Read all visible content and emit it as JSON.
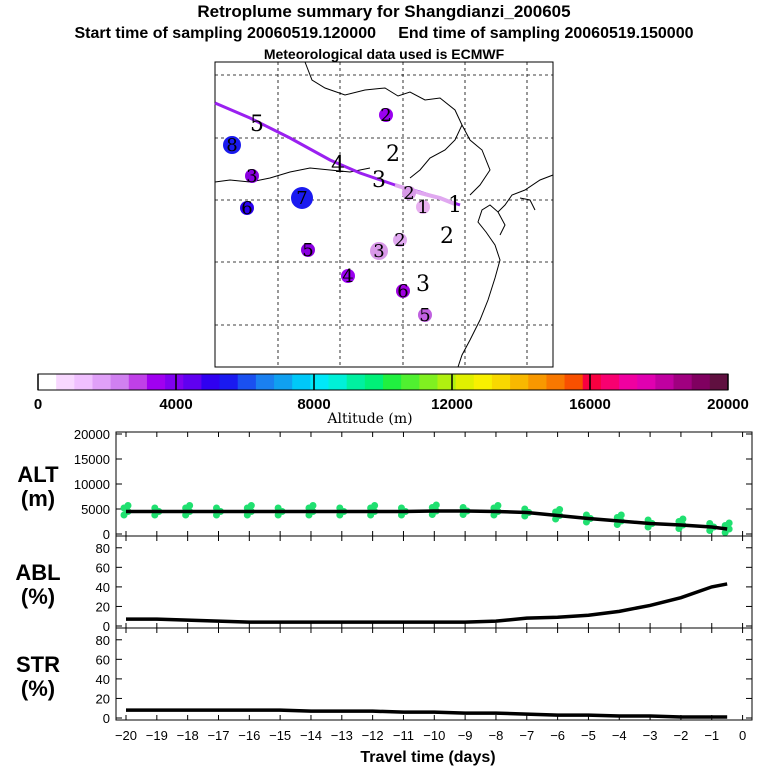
{
  "header": {
    "title": "Retroplume summary for Shangdianzi_200605",
    "start_label": "Start time of sampling 20060519.120000",
    "end_label": "End time of sampling 20060519.150000",
    "met_label": "Meteorological data used is ECMWF"
  },
  "map": {
    "trajectory_color": "#a020f0",
    "cluster_markers": [
      {
        "label": "5",
        "color": "none",
        "size": 0
      },
      {
        "label": "8",
        "color": "#1a1aee",
        "size": 2
      },
      {
        "label": "3",
        "color": "#8a00e0",
        "size": 1
      },
      {
        "label": "6",
        "color": "#2a00f0",
        "size": 1
      },
      {
        "label": "7",
        "color": "#1a1af0",
        "size": 3
      },
      {
        "label": "4",
        "color": "none",
        "size": 0
      },
      {
        "label": "3",
        "color": "none",
        "size": 0
      },
      {
        "label": "2",
        "color": "#9a00f0",
        "size": 1
      },
      {
        "label": "2",
        "color": "none",
        "size": 0
      },
      {
        "label": "2",
        "color": "#d89ae8",
        "size": 1
      },
      {
        "label": "1",
        "color": "#e8b0f0",
        "size": 1
      },
      {
        "label": "1",
        "color": "none",
        "size": 0
      },
      {
        "label": "2",
        "color": "#e0a8f0",
        "size": 1
      },
      {
        "label": "3",
        "color": "#d898e8",
        "size": 2
      },
      {
        "label": "2",
        "color": "none",
        "size": 0
      },
      {
        "label": "5",
        "color": "#8a00e0",
        "size": 1
      },
      {
        "label": "4",
        "color": "#9a00f0",
        "size": 1
      },
      {
        "label": "6",
        "color": "#a000e0",
        "size": 1
      },
      {
        "label": "3",
        "color": "none",
        "size": 0
      },
      {
        "label": "5",
        "color": "#c060e0",
        "size": 1
      }
    ]
  },
  "colorbar": {
    "tick_labels": [
      "0",
      "4000",
      "8000",
      "12000",
      "16000",
      "20000"
    ],
    "label": "Altitude (m)",
    "colors": [
      "#ffffff",
      "#f8d8ff",
      "#f0c0ff",
      "#e0a0f8",
      "#d080f0",
      "#c040e8",
      "#a000f0",
      "#8000f0",
      "#6000f0",
      "#3000f0",
      "#1a1af0",
      "#1a50f0",
      "#1a80f0",
      "#10a0f0",
      "#00c8f8",
      "#00e8f8",
      "#00f0d8",
      "#00f0a0",
      "#00f078",
      "#20f040",
      "#50f030",
      "#80f020",
      "#b0f010",
      "#e0f000",
      "#f8f000",
      "#f8d800",
      "#f8b800",
      "#f89800",
      "#f87800",
      "#f85000",
      "#f80040",
      "#f80070",
      "#f000a0",
      "#e000b0",
      "#c000a0",
      "#a00080",
      "#800060",
      "#601040"
    ]
  },
  "chart_data": [
    {
      "type": "line",
      "panel": "ALT",
      "ylabel": "ALT\n(m)",
      "ylabel_line1": "ALT",
      "ylabel_line2": "(m)",
      "x": [
        -20,
        -19,
        -18,
        -17,
        -16,
        -15,
        -14,
        -13,
        -12,
        -11,
        -10,
        -9,
        -8,
        -7,
        -6,
        -5,
        -4,
        -3,
        -2,
        -1,
        -0.5
      ],
      "values": [
        4500,
        4500,
        4500,
        4500,
        4500,
        4500,
        4500,
        4500,
        4500,
        4500,
        4600,
        4600,
        4500,
        4300,
        3700,
        3100,
        2600,
        2100,
        1800,
        1400,
        1000
      ],
      "scatter_color": "#20e070",
      "ylim": [
        0,
        20000
      ],
      "yticks": [
        0,
        5000,
        10000,
        15000,
        20000
      ]
    },
    {
      "type": "line",
      "panel": "ABL",
      "ylabel_line1": "ABL",
      "ylabel_line2": "(%)",
      "x": [
        -20,
        -19,
        -18,
        -17,
        -16,
        -15,
        -14,
        -13,
        -12,
        -11,
        -10,
        -9,
        -8,
        -7,
        -6,
        -5,
        -4,
        -3,
        -2,
        -1,
        -0.5
      ],
      "values": [
        7,
        7,
        6,
        5,
        4,
        4,
        4,
        4,
        4,
        4,
        4,
        4,
        5,
        8,
        9,
        11,
        15,
        21,
        29,
        40,
        43
      ],
      "ylim": [
        0,
        90
      ],
      "yticks": [
        0,
        20,
        40,
        60,
        80
      ]
    },
    {
      "type": "line",
      "panel": "STR",
      "ylabel_line1": "STR",
      "ylabel_line2": "(%)",
      "x": [
        -20,
        -19,
        -18,
        -17,
        -16,
        -15,
        -14,
        -13,
        -12,
        -11,
        -10,
        -9,
        -8,
        -7,
        -6,
        -5,
        -4,
        -3,
        -2,
        -1,
        -0.5
      ],
      "values": [
        8,
        8,
        8,
        8,
        8,
        8,
        7,
        7,
        7,
        6,
        6,
        5,
        5,
        4,
        3,
        3,
        2,
        2,
        1,
        1,
        1
      ],
      "ylim": [
        0,
        90
      ],
      "yticks": [
        0,
        20,
        40,
        60,
        80
      ],
      "xlabel": "Travel time (days)",
      "xtick_labels": [
        "−20",
        "−19",
        "−18",
        "−17",
        "−16",
        "−15",
        "−14",
        "−13",
        "−12",
        "−11",
        "−10",
        "−9",
        "−8",
        "−7",
        "−6",
        "−5",
        "−4",
        "−3",
        "−2",
        "−1",
        "0"
      ]
    }
  ]
}
